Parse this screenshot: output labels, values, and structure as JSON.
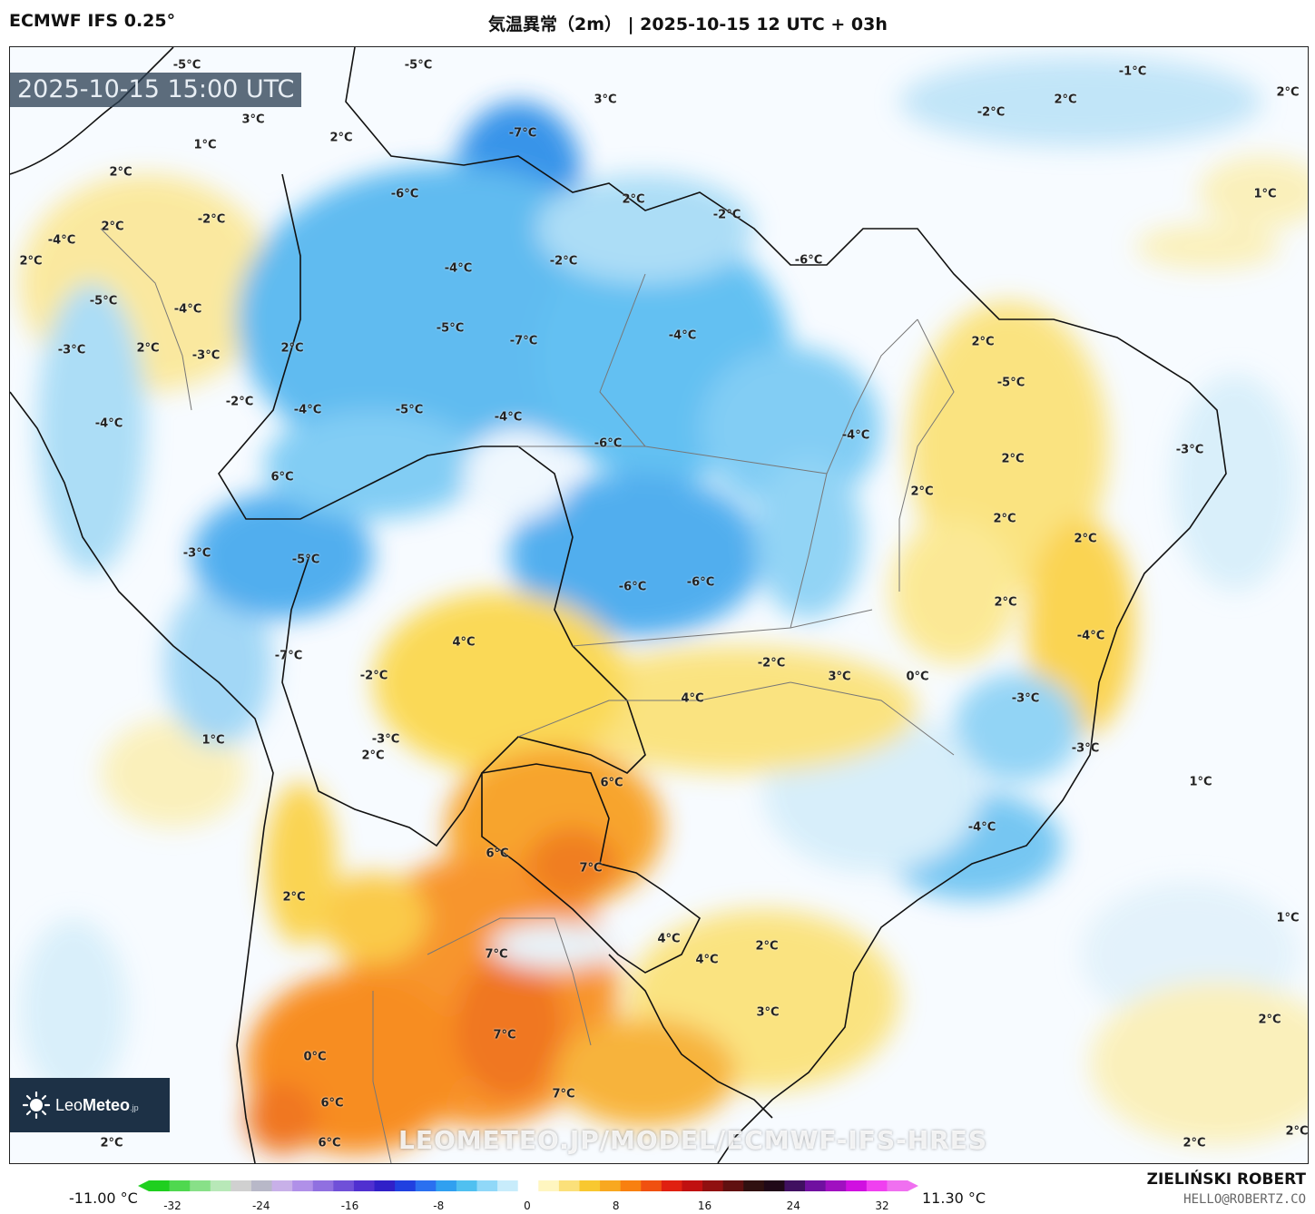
{
  "header": {
    "model": "ECMWF IFS 0.25°",
    "title": "気温異常（2m） | 2025-10-15 12 UTC + 03h"
  },
  "map": {
    "timestamp": "2025-10-15 15:00 UTC",
    "logo": {
      "brand_light": "Leo",
      "brand_bold": "Meteo",
      "suffix": ".jp"
    },
    "watermark": "LEOMETEO.JP/MODEL/ECMWF-IFS-HRES",
    "labels": [
      "-5°C",
      "-5°C",
      "-1°C",
      "2°C",
      "3°C",
      "-7°C",
      "3°C",
      "-2°C",
      "2°C",
      "1°C",
      "2°C",
      "-6°C",
      "2°C",
      "1°C",
      "2°C",
      "-2°C",
      "-2°C",
      "2°C",
      "-6°C",
      "-4°C",
      "-4°C",
      "-2°C",
      "2°C",
      "-4°C",
      "-5°C",
      "2°C",
      "2°C",
      "-3°C",
      "2°C",
      "-5°C",
      "-7°C",
      "-4°C",
      "-3°C",
      "-5°C",
      "-2°C",
      "-4°C",
      "-5°C",
      "-4°C",
      "-4°C",
      "-6°C",
      "-4°C",
      "-3°C",
      "2°C",
      "2°C",
      "6°C",
      "2°C",
      "2°C",
      "-3°C",
      "-5°C",
      "-6°C",
      "-6°C",
      "2°C",
      "4°C",
      "-7°C",
      "-2°C",
      "3°C",
      "0°C",
      "4°C",
      "-2°C",
      "-3°C",
      "-4°C",
      "1°C",
      "2°C",
      "-3°C",
      "1°C",
      "6°C",
      "-3°C",
      "6°C",
      "7°C",
      "-4°C",
      "2°C",
      "4°C",
      "2°C",
      "4°C",
      "1°C",
      "7°C",
      "3°C",
      "7°C",
      "2°C",
      "0°C",
      "6°C",
      "7°C",
      "2°C",
      "6°C",
      "2°C",
      "2°C"
    ]
  },
  "legend": {
    "min_label": "-11.00 °C",
    "max_label": "11.30 °C",
    "ticks": [
      "-32",
      "-24",
      "-16",
      "-8",
      "0",
      "8",
      "16",
      "24",
      "32"
    ],
    "colors": [
      "#1fcf1f",
      "#4fd84f",
      "#88e088",
      "#b8e8b8",
      "#d0d0d0",
      "#b8b8c8",
      "#c8b0e8",
      "#b090e8",
      "#9070e0",
      "#7050d8",
      "#5030d0",
      "#3020c8",
      "#2040e0",
      "#2a70f0",
      "#30a0f0",
      "#50c0f0",
      "#90d8f8",
      "#c8ecfb",
      "#ffffff",
      "#fff6c0",
      "#fbe07a",
      "#f8c830",
      "#f8a820",
      "#f88010",
      "#f05010",
      "#e02010",
      "#c01010",
      "#901010",
      "#601010",
      "#301010",
      "#200818",
      "#401060",
      "#7010a0",
      "#a010c0",
      "#d010e0",
      "#f040f0",
      "#f070f0"
    ]
  },
  "credit": {
    "name": "ZIELIŃSKI ROBERT",
    "email": "HELLO@ROBERTZ.CO"
  }
}
